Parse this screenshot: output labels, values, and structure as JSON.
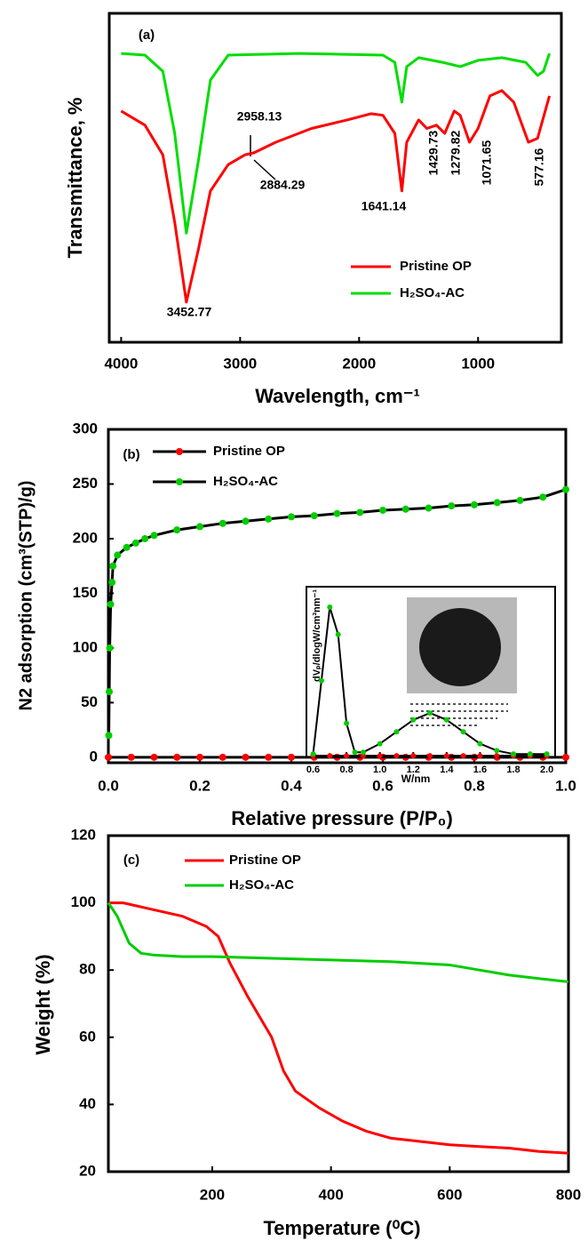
{
  "chart_data": [
    {
      "type": "line",
      "panel_label": "(a)",
      "x_label": "Wavelength, cm⁻¹",
      "y_label": "Transmittance, %",
      "xlim": [
        4100,
        300
      ],
      "xticks": [
        4000,
        3000,
        2000,
        1000
      ],
      "ylim": [
        0,
        100
      ],
      "annotations": [
        "3452.77",
        "2958.13",
        "2884.29",
        "1641.14",
        "1429.73",
        "1279.82",
        "1071.65",
        "577.16"
      ],
      "series": [
        {
          "name": "Pristine OP",
          "color": "#ff0000",
          "x": [
            4000,
            3800,
            3650,
            3550,
            3452,
            3350,
            3250,
            3100,
            2958,
            2884,
            2700,
            2400,
            2100,
            1900,
            1800,
            1700,
            1641,
            1600,
            1500,
            1430,
            1350,
            1280,
            1200,
            1150,
            1072,
            1000,
            900,
            800,
            700,
            577,
            500,
            400
          ],
          "values": [
            70.3,
            66,
            57,
            36.5,
            12.2,
            28.4,
            46,
            54,
            57,
            57.6,
            60.8,
            65,
            67.6,
            69.5,
            69,
            63.5,
            46,
            60.8,
            67.6,
            65,
            66,
            63.5,
            70.3,
            69,
            60.8,
            65,
            74.9,
            76.5,
            73,
            60.8,
            62,
            74.9
          ]
        },
        {
          "name": "H₂SO₄-AC",
          "color": "#00dd00",
          "x": [
            4000,
            3800,
            3650,
            3550,
            3452,
            3350,
            3250,
            3100,
            2500,
            1800,
            1700,
            1641,
            1600,
            1500,
            1300,
            1150,
            1000,
            800,
            600,
            500,
            450,
            400
          ],
          "values": [
            87.8,
            87.3,
            82.4,
            63.5,
            33.2,
            55.4,
            79.7,
            87.3,
            87.8,
            87.3,
            85.1,
            73,
            83.8,
            86.5,
            85.1,
            83.8,
            85.7,
            86.5,
            85.1,
            81.1,
            82.4,
            87.8
          ]
        }
      ]
    },
    {
      "type": "line",
      "panel_label": "(b)",
      "x_label": "Relative pressure (P/P₀)",
      "y_label": "N2 adsorption (cm³(STP)/g)",
      "xlim": [
        0,
        1
      ],
      "xticks": [
        {
          "value": 0,
          "label": "0.0"
        },
        0.2,
        0.4,
        0.6,
        0.8,
        {
          "value": 1,
          "label": "1.0"
        }
      ],
      "ylim": [
        -5,
        300
      ],
      "yticks": [
        0,
        50,
        100,
        150,
        200,
        250,
        300
      ],
      "series": [
        {
          "name": "Pristine OP",
          "color": "#ff0000",
          "marker": true,
          "x": [
            0,
            0.05,
            0.1,
            0.15,
            0.2,
            0.25,
            0.3,
            0.35,
            0.4,
            0.45,
            0.5,
            0.55,
            0.6,
            0.65,
            0.7,
            0.75,
            0.8,
            0.85,
            0.9,
            0.95,
            1
          ],
          "values": [
            0,
            0,
            0,
            0,
            0,
            0,
            0,
            0,
            0,
            0,
            0,
            0,
            0,
            0,
            0,
            0,
            0,
            0,
            0,
            0,
            0
          ]
        },
        {
          "name": "H₂SO₄-AC",
          "color": "#00cc00",
          "marker": true,
          "x": [
            0.001,
            0.002,
            0.003,
            0.005,
            0.008,
            0.01,
            0.02,
            0.04,
            0.06,
            0.08,
            0.1,
            0.15,
            0.2,
            0.25,
            0.3,
            0.35,
            0.4,
            0.45,
            0.5,
            0.55,
            0.6,
            0.65,
            0.7,
            0.75,
            0.8,
            0.85,
            0.9,
            0.95,
            1
          ],
          "values": [
            20,
            60,
            100,
            140,
            160,
            175,
            185,
            192,
            196,
            200,
            203,
            208,
            211,
            214,
            216,
            218,
            220,
            221,
            223,
            224,
            226,
            227,
            228,
            230,
            231,
            233,
            235,
            238,
            245
          ]
        }
      ]
    },
    {
      "type": "line",
      "panel_label": "(c)",
      "x_label": "Temperature (⁰C)",
      "y_label": "Weight (%)",
      "xlim": [
        25,
        800
      ],
      "xticks": [
        200,
        400,
        600,
        800
      ],
      "ylim": [
        20,
        120
      ],
      "yticks": [
        20,
        40,
        60,
        80,
        100,
        120
      ],
      "series": [
        {
          "name": "Pristine OP",
          "color": "#ff0000",
          "x": [
            25,
            50,
            100,
            150,
            190,
            210,
            230,
            260,
            300,
            320,
            340,
            380,
            420,
            460,
            500,
            550,
            600,
            650,
            700,
            750,
            800
          ],
          "values": [
            100,
            100,
            98,
            96,
            93,
            90,
            82,
            72,
            60,
            50,
            44,
            39,
            35,
            32,
            30,
            29,
            28,
            27.5,
            27,
            26,
            25.5
          ]
        },
        {
          "name": "H₂SO₄-AC",
          "color": "#00cc00",
          "x": [
            25,
            40,
            60,
            80,
            100,
            150,
            200,
            300,
            400,
            500,
            600,
            650,
            700,
            750,
            800
          ],
          "values": [
            100,
            96,
            88,
            85,
            84.5,
            84,
            84,
            83.5,
            83,
            82.5,
            81.5,
            80,
            78.5,
            77.5,
            76.5
          ]
        }
      ]
    },
    {
      "type": "line",
      "x_label": "W/nm",
      "y_label": "dVₚ/dlogW/cm³nm⁻¹",
      "xlim": [
        0.56,
        2.05
      ],
      "xticks": [
        0.6,
        0.8,
        {
          "value": 1,
          "label": "1.0"
        },
        1.2,
        1.4,
        1.6,
        1.8,
        {
          "value": 2,
          "label": "2.0"
        }
      ],
      "ylim": [
        0,
        100
      ],
      "series": [
        {
          "name": "Pristine OP",
          "color": "#ff0000",
          "marker": true,
          "x": [
            0.6,
            0.7,
            0.8,
            0.9,
            1,
            1.1,
            1.2,
            1.3,
            1.4,
            1.5,
            1.6,
            1.7,
            1.8,
            1.9,
            2
          ],
          "values": [
            1,
            1,
            1,
            1,
            1,
            1,
            1,
            1,
            1,
            1,
            1,
            1,
            1,
            1,
            1
          ]
        },
        {
          "name": "H₂SO₄-AC",
          "color": "#00cc00",
          "marker": true,
          "x": [
            0.6,
            0.65,
            0.7,
            0.75,
            0.8,
            0.85,
            0.9,
            1,
            1.1,
            1.2,
            1.3,
            1.4,
            1.5,
            1.6,
            1.7,
            1.8,
            1.9,
            2
          ],
          "values": [
            2,
            45,
            88,
            72,
            20,
            3,
            3,
            8,
            15,
            22,
            26,
            22,
            15,
            8,
            4,
            2,
            2,
            2
          ]
        }
      ]
    }
  ]
}
